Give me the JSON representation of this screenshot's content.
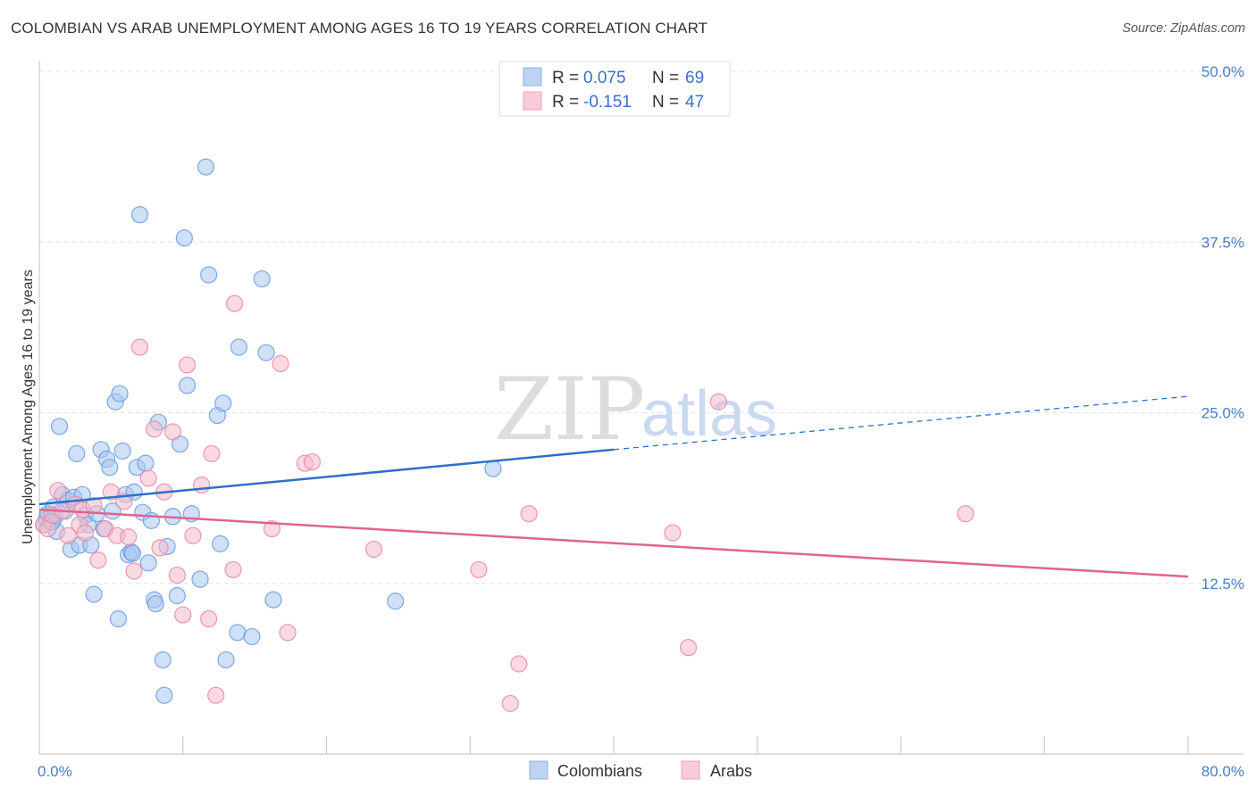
{
  "header": {
    "title": "COLOMBIAN VS ARAB UNEMPLOYMENT AMONG AGES 16 TO 19 YEARS CORRELATION CHART",
    "source": "Source: ZipAtlas.com"
  },
  "watermark": {
    "zip": "ZIP",
    "atlas": "atlas"
  },
  "legend": {
    "r_label": "R =",
    "n_label": "N =",
    "colombians": {
      "r": "0.075",
      "n": "69",
      "color": "#a8c6f0"
    },
    "arabs": {
      "r": "-0.151",
      "n": "47",
      "color": "#f6b9cc"
    }
  },
  "bottom_legend": {
    "colombians": "Colombians",
    "arabs": "Arabs"
  },
  "chart_data": {
    "type": "scatter",
    "xlabel": "",
    "ylabel": "Unemployment Among Ages 16 to 19 years",
    "xlim": [
      0,
      80
    ],
    "ylim": [
      0,
      50
    ],
    "x_ticks": [
      {
        "value": 0,
        "label": "0.0%"
      },
      {
        "value": 80,
        "label": "80.0%"
      }
    ],
    "y_ticks": [
      {
        "value": 12.5,
        "label": "12.5%"
      },
      {
        "value": 25,
        "label": "25.0%"
      },
      {
        "value": 37.5,
        "label": "37.5%"
      },
      {
        "value": 50,
        "label": "50.0%"
      }
    ],
    "grid": true,
    "legend_position": "top-center",
    "series": [
      {
        "name": "Colombians",
        "color": "#6a9be0",
        "fill": "#a8c6f0",
        "trend": {
          "x": [
            0,
            40
          ],
          "y": [
            18.3,
            22.3
          ],
          "dashed_to": {
            "x": 80,
            "y": 26.2
          },
          "color": "#2d6fcc"
        },
        "points": [
          [
            0.3,
            16.8
          ],
          [
            0.5,
            17.2
          ],
          [
            0.6,
            17.6
          ],
          [
            0.8,
            17.0
          ],
          [
            1.0,
            18.1
          ],
          [
            1.1,
            17.4
          ],
          [
            1.4,
            24.0
          ],
          [
            1.6,
            19.0
          ],
          [
            1.8,
            17.8
          ],
          [
            2.0,
            18.6
          ],
          [
            2.2,
            15.0
          ],
          [
            2.4,
            18.8
          ],
          [
            2.6,
            22.0
          ],
          [
            2.8,
            15.3
          ],
          [
            3.0,
            19.0
          ],
          [
            3.2,
            17.5
          ],
          [
            3.4,
            16.8
          ],
          [
            3.6,
            15.3
          ],
          [
            3.8,
            11.7
          ],
          [
            4.0,
            17.6
          ],
          [
            4.3,
            22.3
          ],
          [
            4.5,
            16.5
          ],
          [
            4.7,
            21.6
          ],
          [
            4.9,
            21.0
          ],
          [
            5.1,
            17.8
          ],
          [
            5.3,
            25.8
          ],
          [
            5.5,
            9.9
          ],
          [
            5.6,
            26.4
          ],
          [
            5.8,
            22.2
          ],
          [
            6.0,
            19.0
          ],
          [
            6.2,
            14.6
          ],
          [
            6.4,
            14.8
          ],
          [
            6.6,
            19.2
          ],
          [
            6.8,
            21.0
          ],
          [
            7.0,
            39.5
          ],
          [
            7.2,
            17.7
          ],
          [
            7.4,
            21.3
          ],
          [
            7.6,
            14.0
          ],
          [
            7.8,
            17.1
          ],
          [
            8.0,
            11.3
          ],
          [
            8.1,
            11.0
          ],
          [
            8.3,
            24.3
          ],
          [
            8.6,
            6.9
          ],
          [
            8.7,
            4.3
          ],
          [
            8.9,
            15.2
          ],
          [
            9.3,
            17.4
          ],
          [
            9.6,
            11.6
          ],
          [
            9.8,
            22.7
          ],
          [
            10.1,
            37.8
          ],
          [
            10.3,
            27.0
          ],
          [
            10.6,
            17.6
          ],
          [
            11.2,
            12.8
          ],
          [
            11.6,
            43.0
          ],
          [
            11.8,
            35.1
          ],
          [
            12.4,
            24.8
          ],
          [
            12.6,
            15.4
          ],
          [
            12.8,
            25.7
          ],
          [
            13.0,
            6.9
          ],
          [
            13.8,
            8.9
          ],
          [
            14.8,
            8.6
          ],
          [
            15.5,
            34.8
          ],
          [
            15.8,
            29.4
          ],
          [
            16.3,
            11.3
          ],
          [
            13.9,
            29.8
          ],
          [
            24.8,
            11.2
          ],
          [
            31.6,
            20.9
          ],
          [
            1.2,
            16.3
          ],
          [
            0.9,
            17.0
          ],
          [
            6.5,
            14.7
          ]
        ]
      },
      {
        "name": "Arabs",
        "color": "#e887a6",
        "fill": "#f6b9cc",
        "trend": {
          "x": [
            0,
            80
          ],
          "y": [
            17.9,
            13.0
          ],
          "color": "#e0648f"
        },
        "points": [
          [
            0.3,
            16.8
          ],
          [
            0.6,
            16.5
          ],
          [
            0.9,
            17.5
          ],
          [
            1.3,
            19.3
          ],
          [
            1.6,
            17.8
          ],
          [
            2.0,
            16.0
          ],
          [
            2.5,
            18.3
          ],
          [
            2.8,
            16.8
          ],
          [
            3.0,
            17.9
          ],
          [
            3.2,
            16.2
          ],
          [
            3.8,
            18.2
          ],
          [
            4.1,
            14.2
          ],
          [
            4.6,
            16.5
          ],
          [
            5.0,
            19.2
          ],
          [
            5.4,
            16.0
          ],
          [
            5.9,
            18.5
          ],
          [
            6.2,
            15.9
          ],
          [
            6.6,
            13.4
          ],
          [
            7.0,
            29.8
          ],
          [
            7.6,
            20.2
          ],
          [
            8.0,
            23.8
          ],
          [
            8.4,
            15.1
          ],
          [
            8.7,
            19.2
          ],
          [
            9.3,
            23.6
          ],
          [
            9.6,
            13.1
          ],
          [
            10.0,
            10.2
          ],
          [
            10.3,
            28.5
          ],
          [
            10.7,
            16.0
          ],
          [
            11.3,
            19.7
          ],
          [
            11.8,
            9.9
          ],
          [
            12.0,
            22.0
          ],
          [
            12.3,
            4.3
          ],
          [
            13.5,
            13.5
          ],
          [
            13.6,
            33.0
          ],
          [
            16.2,
            16.5
          ],
          [
            16.8,
            28.6
          ],
          [
            17.3,
            8.9
          ],
          [
            18.5,
            21.3
          ],
          [
            19.0,
            21.4
          ],
          [
            23.3,
            15.0
          ],
          [
            30.6,
            13.5
          ],
          [
            32.8,
            3.7
          ],
          [
            33.4,
            6.6
          ],
          [
            34.1,
            17.6
          ],
          [
            44.1,
            16.2
          ],
          [
            45.2,
            7.8
          ],
          [
            47.3,
            25.8
          ]
        ]
      }
    ],
    "extra_points_arabs": [
      [
        64.5,
        17.6
      ]
    ]
  }
}
